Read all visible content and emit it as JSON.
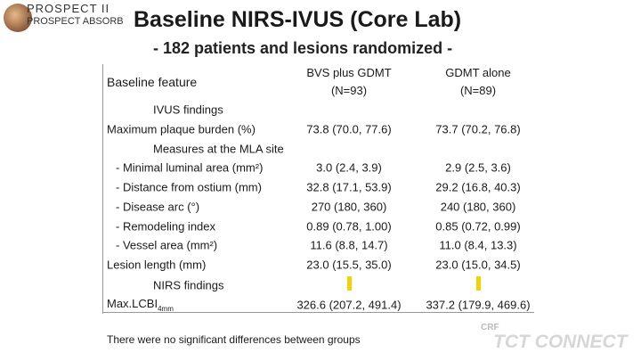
{
  "logo": {
    "line1": "PROSPECT II",
    "line2": "PROSPECT ABSORB"
  },
  "title": "Baseline NIRS-IVUS (Core Lab)",
  "subtitle": "- 182 patients and lesions randomized -",
  "table": {
    "header": [
      [
        "Baseline feature"
      ],
      [
        "BVS plus GDMT",
        "(N=93)"
      ],
      [
        "GDMT alone",
        "(N=89)"
      ]
    ],
    "rows": [
      [
        "IVUS findings"
      ],
      [
        "Maximum plaque burden (%)",
        "73.8 (70.0, 77.6)",
        "73.7 (70.2, 76.8)"
      ],
      [
        "Measures at the MLA site"
      ],
      [
        "- Minimal luminal area (mm²)",
        "3.0 (2.4, 3.9)",
        "2.9 (2.5, 3.6)"
      ],
      [
        "- Distance from ostium (mm)",
        "32.8 (17.1, 53.9)",
        "29.2 (16.8, 40.3)"
      ],
      [
        "- Disease arc (°)",
        "270 (180, 360)",
        "240 (180, 360)"
      ],
      [
        "- Remodeling index",
        "0.89 (0.78, 1.00)",
        "0.85 (0.72, 0.99)"
      ],
      [
        "- Vessel area (mm²)",
        "11.6 (8.8, 14.7)",
        "11.0 (8.4, 13.3)"
      ],
      [
        "Lesion length (mm)",
        "23.0 (15.5, 35.0)",
        "23.0 (15.0, 34.5)"
      ],
      [
        "NIRS findings"
      ],
      [
        "Max.LCBI",
        "326.6 (207.2, 491.4)",
        "337.2 (179.9, 469.6)"
      ]
    ],
    "lcbi_subscript": "4mm"
  },
  "footnote": "There were no significant differences between groups",
  "watermark": {
    "small": "CRF",
    "large": "TCT CONNECT"
  }
}
